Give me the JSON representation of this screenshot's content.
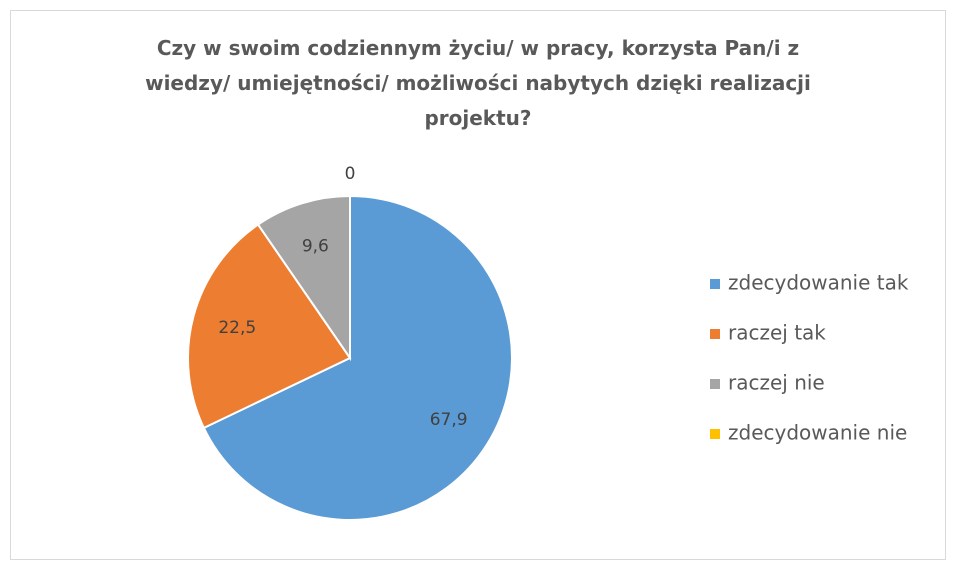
{
  "chart_data": {
    "type": "pie",
    "title": "Czy w swoim codziennym życiu/ w pracy, korzysta Pan/i z wiedzy/ umiejętności/ możliwości nabytych dzięki realizacji projektu?",
    "categories": [
      "zdecydowanie tak",
      "raczej tak",
      "raczej nie",
      "zdecydowanie nie"
    ],
    "values": [
      67.9,
      22.5,
      9.6,
      0
    ],
    "value_labels": [
      "67,9",
      "22,5",
      "9,6",
      "0"
    ],
    "colors": [
      "#5b9bd5",
      "#ed7d31",
      "#a5a5a5",
      "#ffc000"
    ],
    "legend": "right"
  }
}
